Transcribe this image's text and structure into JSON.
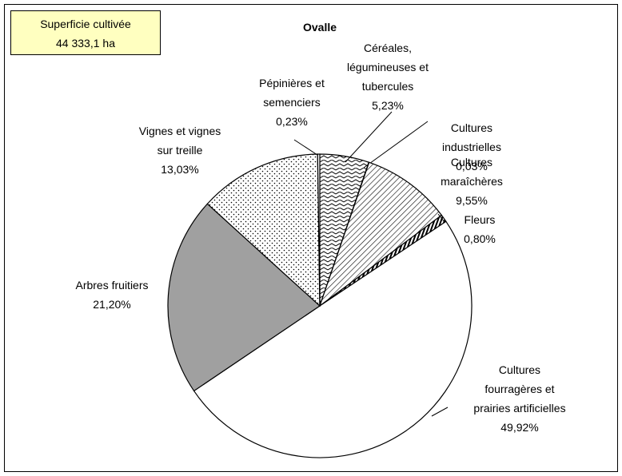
{
  "chart_data": {
    "type": "pie",
    "title": "Ovalle",
    "annotation": [
      "Superficie cultivée",
      "44 333,1 ha"
    ],
    "categories": [
      "Céréales,\nlégumineuses et\ntubercules",
      "Cultures\nindustrielles",
      "Cultures\nmaraîchères",
      "Fleurs",
      "Cultures\nfourragères et\nprairies artificielles",
      "Arbres fruitiers",
      "Vignes et vignes\nsur treille",
      "Pépinières et\nsemenciers"
    ],
    "values": [
      5.23,
      0.03,
      9.55,
      0.8,
      49.92,
      21.2,
      13.03,
      0.23
    ],
    "value_labels": [
      "5,23%",
      "0,03%",
      "9,55%",
      "0,80%",
      "49,92%",
      "21,20%",
      "13,03%",
      "0,23%"
    ]
  }
}
